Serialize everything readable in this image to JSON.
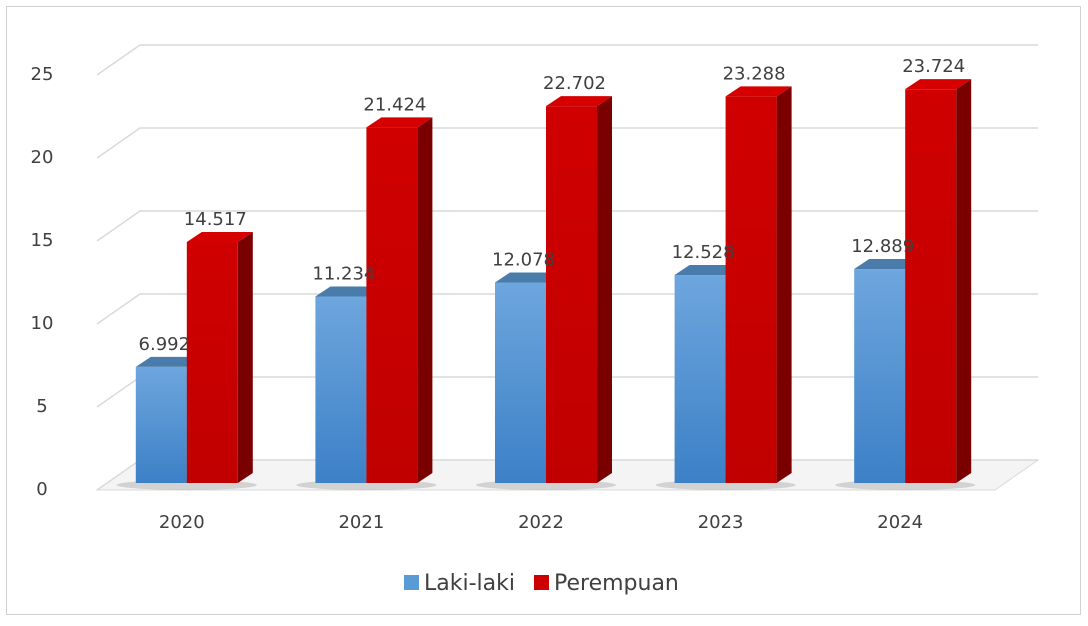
{
  "chart_data": {
    "type": "bar3d",
    "categories": [
      "2020",
      "2021",
      "2022",
      "2023",
      "2024"
    ],
    "series": [
      {
        "name": "Laki-laki",
        "color": "#5b9bd5",
        "values": [
          6.992,
          11.234,
          12.078,
          12.528,
          12.889
        ]
      },
      {
        "name": "Perempuan",
        "color": "#cc0000",
        "values": [
          14.517,
          21.424,
          22.702,
          23.288,
          23.724
        ]
      }
    ],
    "ylim": [
      0,
      25
    ],
    "yticks": [
      0,
      5,
      10,
      15,
      20,
      25
    ],
    "grid": true,
    "legend": "bottom"
  }
}
